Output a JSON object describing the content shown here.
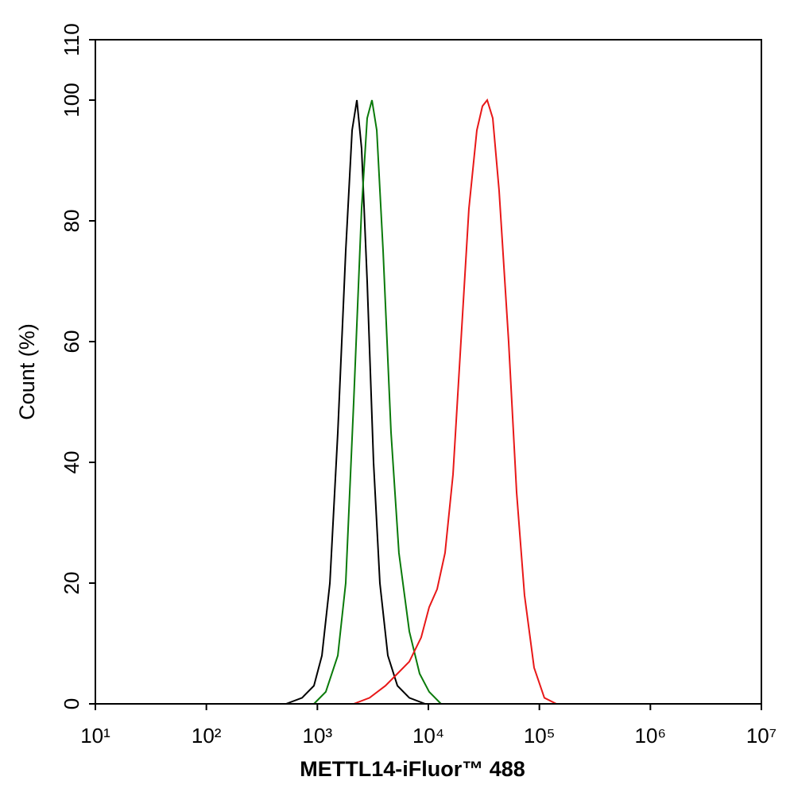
{
  "chart_data": {
    "type": "line",
    "x_label": "METTL14-iFluor™ 488",
    "y_label": "Count  (%)",
    "xscale": "log",
    "xlim": [
      10,
      10000000
    ],
    "xticks": [
      {
        "value": 10,
        "label": "10¹"
      },
      {
        "value": 100,
        "label": "10²"
      },
      {
        "value": 1000,
        "label": "10³"
      },
      {
        "value": 10000,
        "label": "10⁴"
      },
      {
        "value": 100000,
        "label": "10⁵"
      },
      {
        "value": 1000000,
        "label": "10⁶"
      },
      {
        "value": 10000000,
        "label": "10⁷"
      }
    ],
    "ylim": [
      0,
      110
    ],
    "yticks": [
      0,
      20,
      40,
      60,
      80,
      100,
      110
    ],
    "series": [
      {
        "color": "#000000",
        "x": [
          522,
          728,
          931,
          1099,
          1296,
          1528,
          1800,
          2055,
          2269,
          2502,
          2809,
          3206,
          3657,
          4313,
          5262,
          6735,
          9352
        ],
        "values": [
          0,
          1,
          3,
          8,
          20,
          45,
          75,
          95,
          100,
          92,
          70,
          40,
          20,
          8,
          3,
          1,
          0
        ]
      },
      {
        "color": "#0a7a0a",
        "x": [
          931,
          1191,
          1528,
          1800,
          2124,
          2502,
          2809,
          3103,
          3428,
          3909,
          4606,
          5427,
          6735,
          8337,
          10160,
          13000
        ],
        "values": [
          0,
          2,
          8,
          20,
          50,
          82,
          97,
          100,
          95,
          75,
          45,
          25,
          12,
          5,
          2,
          0
        ]
      },
      {
        "color": "#e81818",
        "x": [
          2124,
          2951,
          4104,
          5262,
          6735,
          8610,
          10160,
          11990,
          14130,
          16670,
          19650,
          23170,
          27330,
          30690,
          33880,
          38020,
          43370,
          52840,
          62370,
          73450,
          89570,
          110900,
          142200
        ],
        "values": [
          0,
          1,
          3,
          5,
          7,
          11,
          16,
          19,
          25,
          38,
          60,
          82,
          95,
          99,
          100,
          97,
          85,
          60,
          35,
          18,
          6,
          1,
          0
        ]
      }
    ]
  }
}
